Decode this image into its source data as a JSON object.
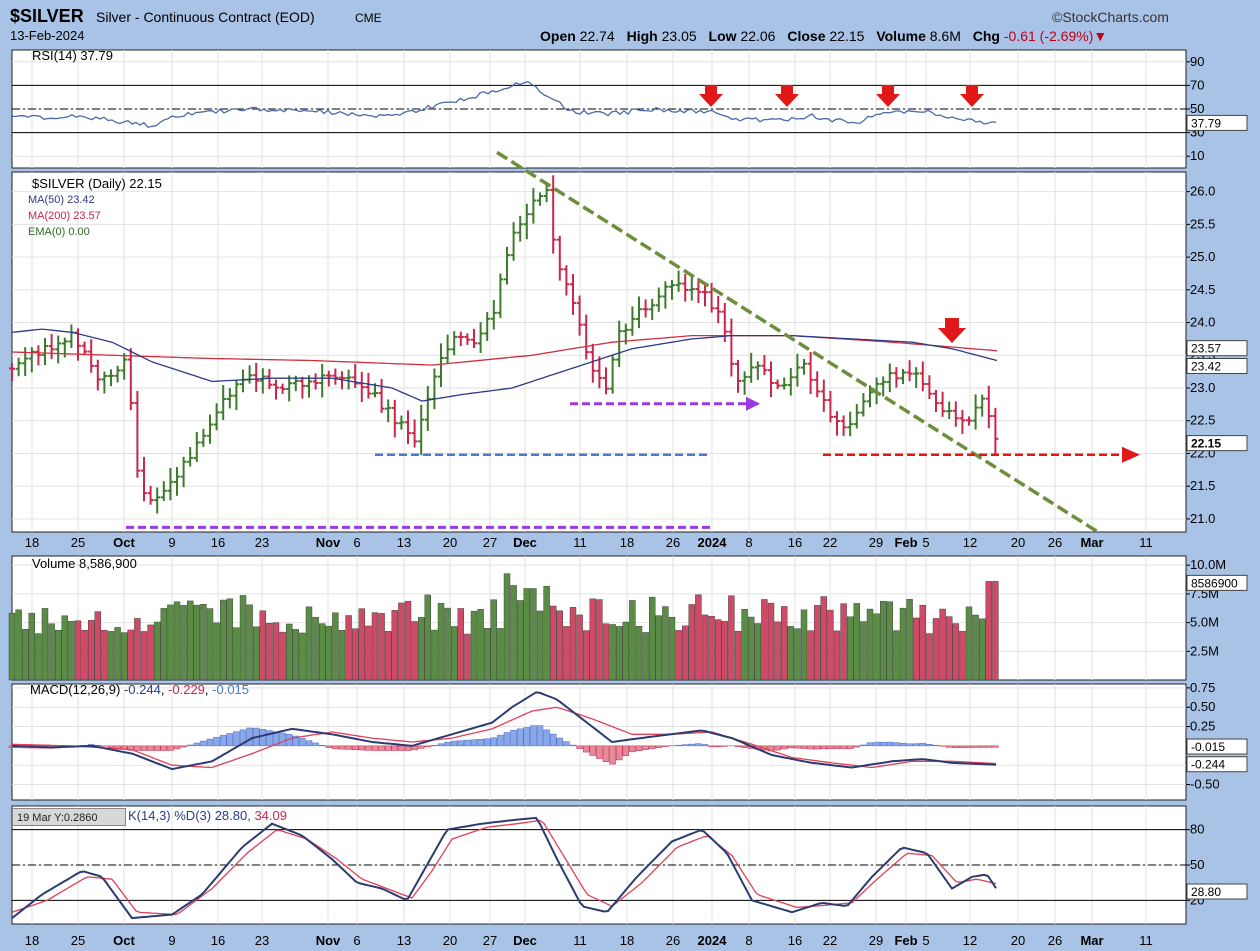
{
  "header": {
    "symbol": "$SILVER",
    "description": "Silver - Continuous Contract (EOD)",
    "exchange": "CME",
    "date": "13-Feb-2024",
    "source": "©StockCharts.com",
    "open_label": "Open",
    "open": "22.74",
    "high_label": "High",
    "high": "23.05",
    "low_label": "Low",
    "low": "22.06",
    "close_label": "Close",
    "close": "22.15",
    "volume_label": "Volume",
    "volume": "8.6M",
    "chg_label": "Chg",
    "chg": "-0.61 (-2.69%)▼"
  },
  "tooltip": "19 Mar Y:0.2860",
  "colors": {
    "up": "#3c7a2c",
    "down": "#c8264a",
    "ma50": "#2c3c88",
    "ma200": "#d03040",
    "trend": "#6e8e3c",
    "arrow": "#e01818"
  },
  "chart_data": [
    {
      "type": "line",
      "title": "RSI(14) 37.79",
      "series": [
        {
          "name": "RSI(14)",
          "last": 37.79
        }
      ],
      "yticks": [
        "90",
        "70",
        "50",
        "30",
        "10"
      ],
      "levels": [
        70,
        50,
        30
      ],
      "last_label": "37.79",
      "anchors": [
        [
          0,
          45
        ],
        [
          20,
          43
        ],
        [
          40,
          41
        ],
        [
          60,
          45
        ],
        [
          120,
          38
        ],
        [
          140,
          36
        ],
        [
          160,
          44
        ],
        [
          200,
          48
        ],
        [
          260,
          50
        ],
        [
          300,
          48
        ],
        [
          340,
          46
        ],
        [
          380,
          44
        ],
        [
          420,
          52
        ],
        [
          460,
          60
        ],
        [
          500,
          70
        ],
        [
          520,
          72
        ],
        [
          540,
          58
        ],
        [
          560,
          48
        ],
        [
          600,
          46
        ],
        [
          640,
          50
        ],
        [
          680,
          48
        ],
        [
          700,
          47
        ],
        [
          720,
          42
        ],
        [
          760,
          40
        ],
        [
          800,
          44
        ],
        [
          840,
          38
        ],
        [
          880,
          48
        ],
        [
          920,
          47
        ],
        [
          960,
          40
        ],
        [
          980,
          37.8
        ]
      ],
      "annotations": [
        "down-arrow",
        "down-arrow",
        "down-arrow",
        "down-arrow"
      ]
    },
    {
      "type": "bar",
      "title": "$SILVER (Daily) 22.15",
      "legend": [
        "$SILVER (Daily) 22.15",
        "MA(50) 23.42",
        "MA(200) 23.57",
        "EMA(0) 0.00"
      ],
      "yticks": [
        "26.0",
        "25.5",
        "25.0",
        "24.5",
        "24.0",
        "23.5",
        "23.0",
        "22.5",
        "22.0",
        "21.5",
        "21.0"
      ],
      "ylim": [
        20.8,
        26.3
      ],
      "xticks": [
        {
          "label": "18",
          "x": 32
        },
        {
          "label": "25",
          "x": 78
        },
        {
          "label": "Oct",
          "x": 124
        },
        {
          "label": "9",
          "x": 172
        },
        {
          "label": "16",
          "x": 218
        },
        {
          "label": "23",
          "x": 262
        },
        {
          "label": "Nov",
          "x": 328
        },
        {
          "label": "6",
          "x": 357
        },
        {
          "label": "13",
          "x": 404
        },
        {
          "label": "20",
          "x": 450
        },
        {
          "label": "27",
          "x": 490
        },
        {
          "label": "Dec",
          "x": 525
        },
        {
          "label": "11",
          "x": 580
        },
        {
          "label": "18",
          "x": 627
        },
        {
          "label": "26",
          "x": 673
        },
        {
          "label": "2024",
          "x": 712
        },
        {
          "label": "8",
          "x": 749
        },
        {
          "label": "16",
          "x": 795
        },
        {
          "label": "22",
          "x": 830
        },
        {
          "label": "29",
          "x": 876
        },
        {
          "label": "Feb",
          "x": 906
        },
        {
          "label": "5",
          "x": 926
        },
        {
          "label": "12",
          "x": 970
        },
        {
          "label": "20",
          "x": 1018
        },
        {
          "label": "26",
          "x": 1055
        },
        {
          "label": "Mar",
          "x": 1092
        },
        {
          "label": "11",
          "x": 1146
        }
      ],
      "price_anchors": [
        [
          0,
          23.3
        ],
        [
          30,
          23.6
        ],
        [
          60,
          23.8
        ],
        [
          90,
          23.1
        ],
        [
          115,
          23.4
        ],
        [
          125,
          21.7
        ],
        [
          140,
          21.2
        ],
        [
          165,
          21.7
        ],
        [
          190,
          22.2
        ],
        [
          210,
          22.8
        ],
        [
          240,
          23.2
        ],
        [
          270,
          23.0
        ],
        [
          300,
          23.1
        ],
        [
          330,
          23.2
        ],
        [
          360,
          22.9
        ],
        [
          390,
          22.4
        ],
        [
          405,
          22.2
        ],
        [
          420,
          23.1
        ],
        [
          440,
          23.8
        ],
        [
          460,
          23.7
        ],
        [
          480,
          24.1
        ],
        [
          500,
          25.3
        ],
        [
          520,
          25.8
        ],
        [
          535,
          26.0
        ],
        [
          545,
          24.9
        ],
        [
          560,
          24.4
        ],
        [
          580,
          23.3
        ],
        [
          595,
          23.0
        ],
        [
          605,
          23.8
        ],
        [
          630,
          24.2
        ],
        [
          660,
          24.6
        ],
        [
          690,
          24.5
        ],
        [
          710,
          24.0
        ],
        [
          725,
          23.1
        ],
        [
          745,
          23.3
        ],
        [
          770,
          23.0
        ],
        [
          790,
          23.4
        ],
        [
          810,
          22.8
        ],
        [
          830,
          22.3
        ],
        [
          845,
          22.6
        ],
        [
          860,
          23.0
        ],
        [
          880,
          23.2
        ],
        [
          900,
          23.3
        ],
        [
          915,
          22.9
        ],
        [
          935,
          22.6
        ],
        [
          955,
          22.4
        ],
        [
          970,
          22.8
        ],
        [
          985,
          22.15
        ]
      ],
      "ma50_anchors": [
        [
          0,
          23.85
        ],
        [
          30,
          23.9
        ],
        [
          60,
          23.85
        ],
        [
          100,
          23.7
        ],
        [
          140,
          23.4
        ],
        [
          200,
          23.1
        ],
        [
          260,
          23.15
        ],
        [
          320,
          23.15
        ],
        [
          380,
          23.0
        ],
        [
          410,
          22.8
        ],
        [
          450,
          22.9
        ],
        [
          500,
          23.0
        ],
        [
          560,
          23.3
        ],
        [
          620,
          23.6
        ],
        [
          680,
          23.75
        ],
        [
          720,
          23.8
        ],
        [
          780,
          23.8
        ],
        [
          840,
          23.75
        ],
        [
          900,
          23.7
        ],
        [
          940,
          23.6
        ],
        [
          985,
          23.42
        ]
      ],
      "ma200_anchors": [
        [
          0,
          23.55
        ],
        [
          100,
          23.5
        ],
        [
          200,
          23.45
        ],
        [
          300,
          23.42
        ],
        [
          420,
          23.35
        ],
        [
          520,
          23.5
        ],
        [
          600,
          23.7
        ],
        [
          680,
          23.8
        ],
        [
          780,
          23.8
        ],
        [
          880,
          23.7
        ],
        [
          985,
          23.57
        ]
      ],
      "trendline": [
        [
          497,
          26.6
        ],
        [
          1098,
          20.8
        ]
      ],
      "support_lines": [
        {
          "y": 21.98,
          "x0": 375,
          "x1": 710
        },
        {
          "y": 20.87,
          "x0": 126,
          "x1": 710
        },
        {
          "y": 22.76,
          "x0": 570,
          "x1": 758
        },
        {
          "y": 21.98,
          "x0": 823,
          "x1": 1138
        }
      ],
      "right_labels": [
        "23.57",
        "23.42",
        "22.15"
      ],
      "annotations": [
        "down-arrow"
      ]
    },
    {
      "type": "bar",
      "title": "Volume 8,586,900",
      "yticks": [
        "10.0M",
        "7.5M",
        "5.0M",
        "2.5M"
      ],
      "ylim": [
        0,
        10.8
      ],
      "last_label": "8586900"
    },
    {
      "type": "line",
      "title": "MACD(12,26,9) -0.244, -0.229, -0.015",
      "legend": [
        "MACD(12,26,9)",
        "-0.244",
        "-0.229",
        "-0.015"
      ],
      "yticks": [
        "0.75",
        "0.50",
        "0.25",
        "-0.25",
        "-0.50"
      ],
      "ylim": [
        -0.7,
        0.8
      ],
      "right_labels": [
        "-0.015",
        "-0.244"
      ],
      "macd_anchors": [
        [
          0,
          0.0
        ],
        [
          40,
          -0.02
        ],
        [
          80,
          0.0
        ],
        [
          120,
          -0.1
        ],
        [
          160,
          -0.3
        ],
        [
          200,
          -0.2
        ],
        [
          240,
          0.1
        ],
        [
          280,
          0.22
        ],
        [
          320,
          0.15
        ],
        [
          360,
          0.05
        ],
        [
          400,
          0.0
        ],
        [
          440,
          0.15
        ],
        [
          480,
          0.3
        ],
        [
          500,
          0.5
        ],
        [
          525,
          0.7
        ],
        [
          545,
          0.6
        ],
        [
          570,
          0.35
        ],
        [
          600,
          0.05
        ],
        [
          640,
          0.12
        ],
        [
          690,
          0.2
        ],
        [
          720,
          0.1
        ],
        [
          760,
          -0.12
        ],
        [
          800,
          -0.22
        ],
        [
          840,
          -0.28
        ],
        [
          880,
          -0.2
        ],
        [
          910,
          -0.17
        ],
        [
          940,
          -0.22
        ],
        [
          985,
          -0.244
        ]
      ],
      "signal_anchors": [
        [
          0,
          0.02
        ],
        [
          60,
          0.0
        ],
        [
          120,
          -0.05
        ],
        [
          160,
          -0.25
        ],
        [
          200,
          -0.28
        ],
        [
          240,
          -0.1
        ],
        [
          280,
          0.1
        ],
        [
          320,
          0.18
        ],
        [
          360,
          0.1
        ],
        [
          400,
          0.05
        ],
        [
          440,
          0.1
        ],
        [
          480,
          0.22
        ],
        [
          520,
          0.45
        ],
        [
          545,
          0.5
        ],
        [
          580,
          0.35
        ],
        [
          620,
          0.15
        ],
        [
          660,
          0.15
        ],
        [
          700,
          0.18
        ],
        [
          740,
          0.02
        ],
        [
          780,
          -0.15
        ],
        [
          820,
          -0.22
        ],
        [
          860,
          -0.28
        ],
        [
          900,
          -0.2
        ],
        [
          940,
          -0.2
        ],
        [
          985,
          -0.229
        ]
      ]
    },
    {
      "type": "line",
      "title": "%K(14,3) %D(3) 28.80, 34.09",
      "legend_tail": "K(14,3) %D(3) 28.80, 34.09",
      "legend_values": [
        "K(14,3) %D(3) 28.80, ",
        "34.09"
      ],
      "yticks": [
        "80",
        "50",
        "20"
      ],
      "levels": [
        80,
        50,
        20
      ],
      "right_labels": [
        "28.80"
      ],
      "k_anchors": [
        [
          0,
          5
        ],
        [
          30,
          25
        ],
        [
          70,
          45
        ],
        [
          90,
          40
        ],
        [
          120,
          5
        ],
        [
          160,
          8
        ],
        [
          190,
          25
        ],
        [
          230,
          65
        ],
        [
          260,
          85
        ],
        [
          290,
          75
        ],
        [
          320,
          55
        ],
        [
          345,
          35
        ],
        [
          370,
          30
        ],
        [
          395,
          20
        ],
        [
          415,
          50
        ],
        [
          435,
          80
        ],
        [
          470,
          85
        ],
        [
          500,
          88
        ],
        [
          525,
          90
        ],
        [
          545,
          55
        ],
        [
          570,
          15
        ],
        [
          595,
          10
        ],
        [
          625,
          40
        ],
        [
          660,
          70
        ],
        [
          690,
          80
        ],
        [
          715,
          60
        ],
        [
          740,
          20
        ],
        [
          780,
          10
        ],
        [
          810,
          18
        ],
        [
          835,
          15
        ],
        [
          860,
          40
        ],
        [
          890,
          65
        ],
        [
          915,
          60
        ],
        [
          940,
          30
        ],
        [
          960,
          40
        ],
        [
          975,
          42
        ],
        [
          985,
          29
        ]
      ],
      "d_anchors": [
        [
          0,
          10
        ],
        [
          35,
          20
        ],
        [
          75,
          40
        ],
        [
          100,
          38
        ],
        [
          125,
          10
        ],
        [
          165,
          8
        ],
        [
          200,
          30
        ],
        [
          235,
          60
        ],
        [
          265,
          80
        ],
        [
          295,
          72
        ],
        [
          325,
          55
        ],
        [
          350,
          38
        ],
        [
          375,
          30
        ],
        [
          400,
          22
        ],
        [
          420,
          45
        ],
        [
          440,
          72
        ],
        [
          475,
          82
        ],
        [
          505,
          85
        ],
        [
          530,
          88
        ],
        [
          550,
          60
        ],
        [
          575,
          25
        ],
        [
          600,
          15
        ],
        [
          630,
          35
        ],
        [
          665,
          65
        ],
        [
          695,
          75
        ],
        [
          720,
          58
        ],
        [
          745,
          25
        ],
        [
          785,
          14
        ],
        [
          815,
          16
        ],
        [
          840,
          18
        ],
        [
          865,
          38
        ],
        [
          895,
          60
        ],
        [
          920,
          58
        ],
        [
          945,
          35
        ],
        [
          965,
          38
        ],
        [
          985,
          34
        ]
      ]
    }
  ]
}
